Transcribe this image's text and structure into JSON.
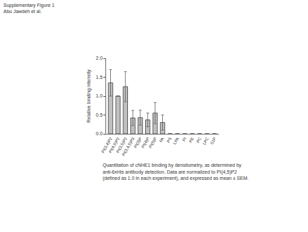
{
  "header": {
    "lines": [
      "Supplementary Figure 1",
      "Abu Jawdeh et al."
    ]
  },
  "chart_data": {
    "type": "bar",
    "y_label": "Relative binding intensity",
    "categories": [
      "PI(3,4)P2",
      "PI(4,5)P2",
      "PI(3,5)P2",
      "PI(3,4,5)P3",
      "PI(3)P",
      "PI(4)P",
      "PI(5)P",
      "PA",
      "PS",
      "LPA",
      "PI",
      "PE",
      "PC",
      "LPC",
      "S1P"
    ],
    "values": [
      1.35,
      1.0,
      1.25,
      0.42,
      0.43,
      0.37,
      0.55,
      0.3,
      0,
      0,
      0,
      0,
      0,
      0,
      0
    ],
    "errors": [
      0.35,
      0,
      0.4,
      0.2,
      0.2,
      0.18,
      0.28,
      0.2,
      0,
      0,
      0,
      0,
      0,
      0,
      0
    ],
    "color": "#c0c0c0",
    "ylim": [
      0,
      2
    ],
    "yticks": [
      {
        "value": 0,
        "label": "0.0"
      },
      {
        "value": 0.5,
        "label": "0.5"
      },
      {
        "value": 1,
        "label": "1.0"
      },
      {
        "value": 1.5,
        "label": "1.5"
      },
      {
        "value": 2,
        "label": "2.0"
      }
    ],
    "grid": false
  },
  "caption": {
    "lines": [
      "Quantitation of cNHE1 binding by densitometry, as determined by",
      "anti-6xHis antibody detection. Data are normalized to PI(4,5)P2",
      "(defined as 1.0 in each experiment), and expressed as mean ± SEM."
    ]
  }
}
